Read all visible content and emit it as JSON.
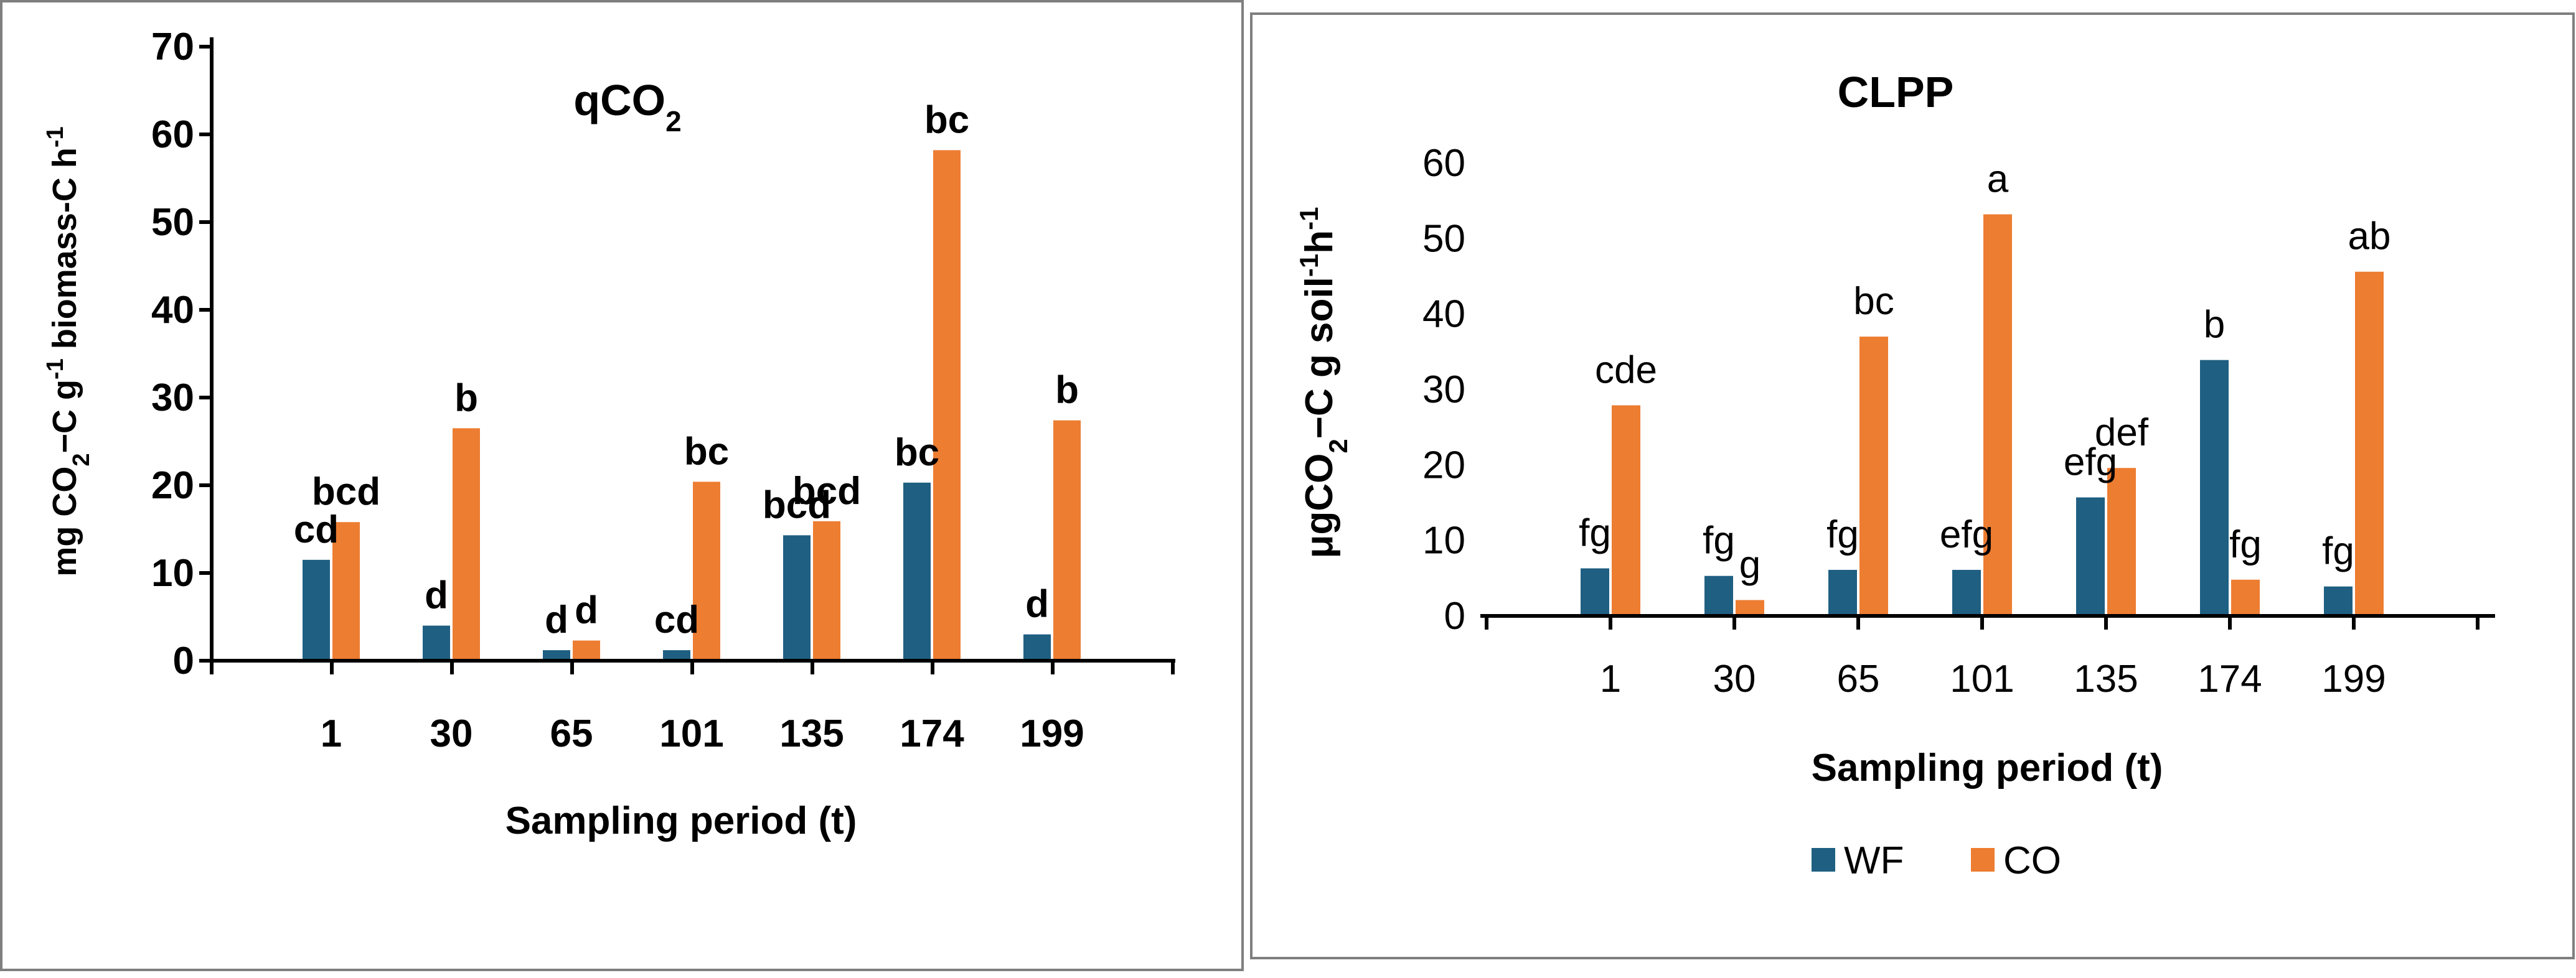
{
  "colors": {
    "wf": "#1f5f82",
    "co": "#ed7d31"
  },
  "chart_data": [
    {
      "id": "qco2",
      "type": "bar",
      "title": "qCO",
      "title_sub": "2",
      "categories": [
        "1",
        "30",
        "65",
        "101",
        "135",
        "174",
        "199"
      ],
      "ylim": [
        0,
        70
      ],
      "yticks": [
        0,
        10,
        20,
        30,
        40,
        50,
        60,
        70
      ],
      "ylabel": [
        "mg CO",
        "2",
        "−C g",
        "-1",
        " biomass-C h",
        "-1"
      ],
      "xlabel": "Sampling period (t)",
      "series": [
        {
          "name": "WF",
          "values": [
            11.5,
            4,
            1.2,
            1.2,
            14.3,
            20.3,
            3
          ],
          "labels": [
            "cd",
            "d",
            "d",
            "cd",
            "bcd",
            "bc",
            "d"
          ]
        },
        {
          "name": "CO",
          "values": [
            15.8,
            26.5,
            2.3,
            20.4,
            15.9,
            58.2,
            27.4
          ],
          "labels": [
            "bcd",
            "b",
            "d",
            "bc",
            "bcd",
            "bc",
            "b"
          ]
        }
      ]
    },
    {
      "id": "clpp",
      "type": "bar",
      "title": "CLPP",
      "categories": [
        "1",
        "30",
        "65",
        "101",
        "135",
        "174",
        "199"
      ],
      "ylim": [
        0,
        60
      ],
      "yticks": [
        0,
        10,
        20,
        30,
        40,
        50,
        60
      ],
      "ylabel": [
        "μgCO",
        "2",
        "−C g soil",
        "-1",
        "h",
        "-1"
      ],
      "xlabel": "Sampling period (t)",
      "legend": [
        "WF",
        "CO"
      ],
      "series": [
        {
          "name": "WF",
          "values": [
            6.3,
            5.3,
            6.1,
            6.1,
            15.7,
            33.9,
            3.9
          ],
          "labels": [
            "fg",
            "fg",
            "fg",
            "efg",
            "efg",
            "b",
            "fg"
          ]
        },
        {
          "name": "CO",
          "values": [
            27.9,
            2.1,
            37,
            53.2,
            19.6,
            4.8,
            45.6
          ],
          "labels": [
            "cde",
            "g",
            "bc",
            "a",
            "def",
            "fg",
            "ab"
          ]
        }
      ]
    }
  ]
}
